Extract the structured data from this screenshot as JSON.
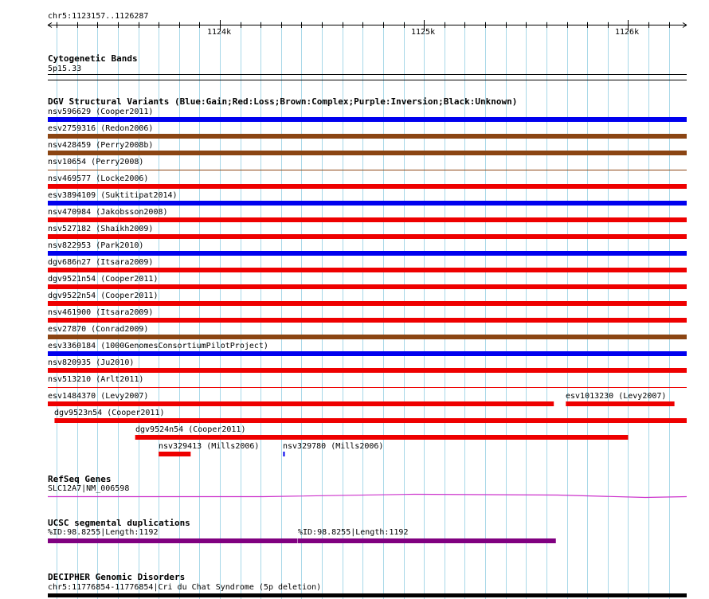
{
  "ruler": {
    "region": "chr5:1123157..1126287",
    "start": 1123157,
    "end": 1126287,
    "ticks": [
      {
        "pos": 1124000,
        "label": "1124k"
      },
      {
        "pos": 1125000,
        "label": "1125k"
      },
      {
        "pos": 1126000,
        "label": "1126k"
      }
    ]
  },
  "colors": {
    "gain": "#0000ee",
    "loss": "#ee0000",
    "complex": "#8b4513",
    "gene": "#cc33cc",
    "segdup": "#800080",
    "grid": "#a8d8e8"
  },
  "tracks": {
    "cyto": {
      "title": "Cytogenetic Bands",
      "band": "5p15.33"
    },
    "dgv": {
      "title": "DGV Structural Variants (Blue:Gain;Red:Loss;Brown:Complex;Purple:Inversion;Black:Unknown)",
      "rows": [
        [
          {
            "label": "nsv596629 (Cooper2011)",
            "type": "gain",
            "start": 1123157,
            "end": 1126287
          }
        ],
        [
          {
            "label": "esv2759316 (Redon2006)",
            "type": "complex",
            "start": 1123157,
            "end": 1126287
          }
        ],
        [
          {
            "label": "nsv428459 (Perry2008b)",
            "type": "complex",
            "start": 1123157,
            "end": 1126287
          }
        ],
        [
          {
            "label": "nsv10654 (Perry2008)",
            "type": "complex",
            "start": 1123157,
            "end": 1126287,
            "thin": true
          }
        ],
        [
          {
            "label": "nsv469577 (Locke2006)",
            "type": "loss",
            "start": 1123157,
            "end": 1126287
          }
        ],
        [
          {
            "label": "esv3894109 (Suktitipat2014)",
            "type": "gain",
            "start": 1123157,
            "end": 1126287
          }
        ],
        [
          {
            "label": "nsv470984 (Jakobsson2008)",
            "type": "loss",
            "start": 1123157,
            "end": 1126287
          }
        ],
        [
          {
            "label": "nsv527182 (Shaikh2009)",
            "type": "loss",
            "start": 1123157,
            "end": 1126287
          }
        ],
        [
          {
            "label": "nsv822953 (Park2010)",
            "type": "gain",
            "start": 1123157,
            "end": 1126287
          }
        ],
        [
          {
            "label": "dgv686n27 (Itsara2009)",
            "type": "loss",
            "start": 1123157,
            "end": 1126287
          }
        ],
        [
          {
            "label": "dgv9521n54 (Cooper2011)",
            "type": "loss",
            "start": 1123157,
            "end": 1126287
          }
        ],
        [
          {
            "label": "dgv9522n54 (Cooper2011)",
            "type": "loss",
            "start": 1123157,
            "end": 1126287
          }
        ],
        [
          {
            "label": "nsv461900 (Itsara2009)",
            "type": "loss",
            "start": 1123157,
            "end": 1126287
          }
        ],
        [
          {
            "label": "esv27870 (Conrad2009)",
            "type": "complex",
            "start": 1123157,
            "end": 1126287
          }
        ],
        [
          {
            "label": "esv3360184 (1000GenomesConsortiumPilotProject)",
            "type": "gain",
            "start": 1123157,
            "end": 1126287
          }
        ],
        [
          {
            "label": "nsv820935 (Ju2010)",
            "type": "loss",
            "start": 1123157,
            "end": 1126287
          }
        ],
        [
          {
            "label": "nsv513210 (Arlt2011)",
            "type": "loss",
            "start": 1123157,
            "end": 1126287,
            "thin": true
          }
        ],
        [
          {
            "label": "esv1484370 (Levy2007)",
            "type": "loss",
            "start": 1123157,
            "end": 1125636
          },
          {
            "label": "esv1013230 (Levy2007)",
            "type": "loss",
            "start": 1125695,
            "end": 1126227
          }
        ],
        [
          {
            "label": "dgv9523n54 (Cooper2011)",
            "type": "loss",
            "start": 1123190,
            "end": 1126287
          }
        ],
        [
          {
            "label": "dgv9524n54 (Cooper2011)",
            "type": "loss",
            "start": 1123585,
            "end": 1126000
          }
        ],
        [
          {
            "label": "nsv329413 (Mills2006)",
            "type": "loss",
            "start": 1123700,
            "end": 1123857
          },
          {
            "label": "nsv329780 (Mills2006)",
            "type": "gain",
            "start": 1124310,
            "end": 1124318
          }
        ]
      ]
    },
    "refseq": {
      "title": "RefSeq Genes",
      "gene_label": "SLC12A7|NM_006598"
    },
    "segdup": {
      "title": "UCSC segmental duplications",
      "items": [
        {
          "label": "%ID:98.8255|Length:1192",
          "start": 1123157,
          "end": 1124380
        },
        {
          "label": "%ID:98.8255|Length:1192",
          "start": 1124382,
          "end": 1125646
        }
      ]
    },
    "decipher": {
      "title": "DECIPHER Genomic Disorders",
      "label": "chr5:11776854-11776854|Cri du Chat Syndrome (5p deletion)"
    }
  }
}
